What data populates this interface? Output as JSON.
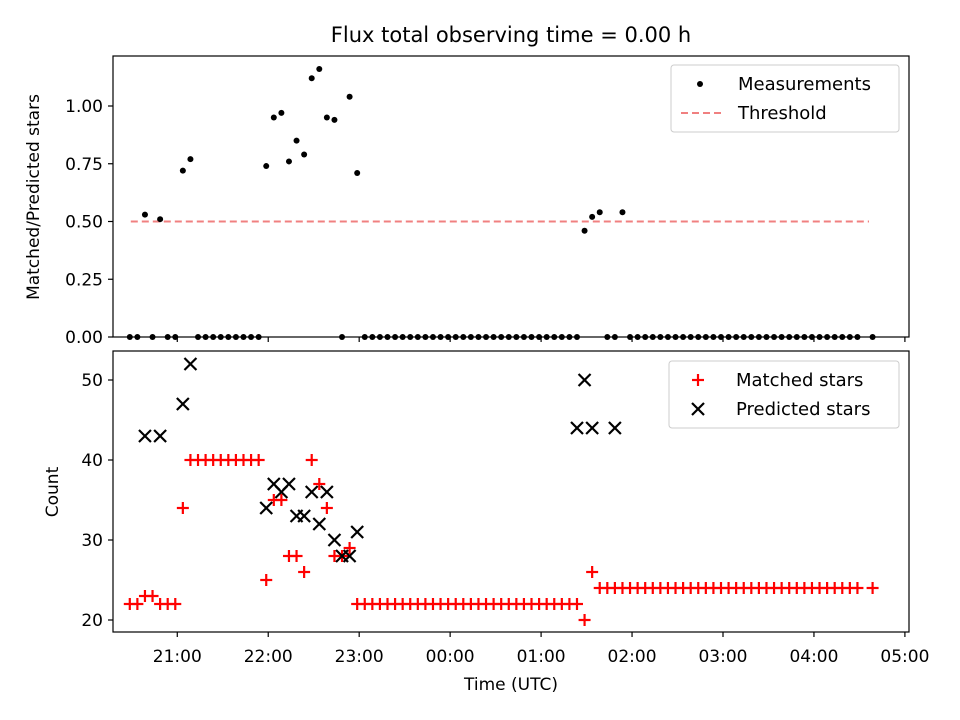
{
  "figure": {
    "title": "Flux total observing time = 0.00 h"
  },
  "chart_data": [
    {
      "type": "scatter",
      "panel": "top",
      "title": "Flux total observing time = 0.00 h",
      "xlabel": "",
      "ylabel": "Matched/Predicted stars",
      "ylim": [
        0.0,
        1.2
      ],
      "yticks": [
        0.0,
        0.25,
        0.5,
        0.75,
        1.0
      ],
      "yticklabels": [
        "0.00",
        "0.25",
        "0.50",
        "0.75",
        "1.00"
      ],
      "xticks_only": true,
      "legend_position": "top-right",
      "series": [
        {
          "name": "Measurements",
          "marker": "dot",
          "color": "#000000",
          "x": [
            "20:30",
            "20:35",
            "20:40",
            "20:45",
            "20:50",
            "20:55",
            "21:00",
            "21:05",
            "21:10",
            "21:15",
            "21:20",
            "21:25",
            "21:30",
            "21:35",
            "21:40",
            "21:45",
            "21:50",
            "21:55",
            "22:00",
            "22:05",
            "22:10",
            "22:15",
            "22:20",
            "22:25",
            "22:30",
            "22:35",
            "22:40",
            "22:45",
            "22:50",
            "22:55",
            "23:00",
            "23:05",
            "23:10",
            "23:15",
            "23:20",
            "23:25",
            "23:30",
            "23:35",
            "23:40",
            "23:45",
            "23:50",
            "23:55",
            "00:00",
            "00:05",
            "00:10",
            "00:15",
            "00:20",
            "00:25",
            "00:30",
            "00:35",
            "00:40",
            "00:45",
            "00:50",
            "00:55",
            "01:00",
            "01:05",
            "01:10",
            "01:15",
            "01:20",
            "01:25",
            "01:30",
            "01:35",
            "01:40",
            "01:45",
            "01:50",
            "01:55",
            "02:00",
            "02:05",
            "02:10",
            "02:15",
            "02:20",
            "02:25",
            "02:30",
            "02:35",
            "02:40",
            "02:45",
            "02:50",
            "02:55",
            "03:00",
            "03:05",
            "03:10",
            "03:15",
            "03:20",
            "03:25",
            "03:30",
            "03:35",
            "03:40",
            "03:45",
            "03:50",
            "03:55",
            "04:00",
            "04:05",
            "04:10",
            "04:15",
            "04:20",
            "04:25",
            "04:30",
            "04:35",
            "04:40"
          ],
          "y": [
            0,
            0,
            0.53,
            0,
            0.51,
            0,
            0,
            0.72,
            0.77,
            0,
            0,
            0,
            0,
            0,
            0,
            0,
            0,
            0,
            0.74,
            0.95,
            0.97,
            0.76,
            0.85,
            0.79,
            1.12,
            1.16,
            0.95,
            0.94,
            0,
            1.04,
            0.71,
            0,
            0,
            0,
            0,
            0,
            0,
            0,
            0,
            0,
            0,
            0,
            0,
            0,
            0,
            0,
            0,
            0,
            0,
            0,
            0,
            0,
            0,
            0,
            0,
            0,
            0,
            0,
            0,
            0,
            0.46,
            0.52,
            0.54,
            0,
            0,
            0.54,
            0,
            0,
            0,
            0,
            0,
            0,
            0,
            0,
            0,
            0,
            0,
            0,
            0,
            0,
            0,
            0,
            0,
            0,
            0,
            0,
            0,
            0,
            0,
            0,
            0,
            0,
            0,
            0,
            0,
            0,
            0,
            null,
            0
          ]
        },
        {
          "name": "Threshold",
          "style": "dashed",
          "color": "#f08080",
          "x": [
            "20:30",
            "04:35"
          ],
          "y": [
            0.5,
            0.5
          ]
        }
      ]
    },
    {
      "type": "scatter",
      "panel": "bottom",
      "xlabel": "Time (UTC)",
      "ylabel": "Count",
      "ylim": [
        18,
        54
      ],
      "yticks": [
        20,
        30,
        40,
        50
      ],
      "yticklabels": [
        "20",
        "30",
        "40",
        "50"
      ],
      "xticks": [
        "21:00",
        "22:00",
        "23:00",
        "00:00",
        "01:00",
        "02:00",
        "03:00",
        "04:00",
        "05:00"
      ],
      "xticklabels": [
        "21:00",
        "22:00",
        "23:00",
        "00:00",
        "01:00",
        "02:00",
        "03:00",
        "04:00",
        "05:00"
      ],
      "legend_position": "top-right",
      "series": [
        {
          "name": "Matched stars",
          "marker": "plus",
          "color": "#ff0000",
          "x": [
            "20:30",
            "20:35",
            "20:40",
            "20:45",
            "20:50",
            "20:55",
            "21:00",
            "21:05",
            "21:10",
            "21:15",
            "21:20",
            "21:25",
            "21:30",
            "21:35",
            "21:40",
            "21:45",
            "21:50",
            "21:55",
            "22:00",
            "22:05",
            "22:10",
            "22:15",
            "22:20",
            "22:25",
            "22:30",
            "22:35",
            "22:40",
            "22:45",
            "22:50",
            "22:55",
            "23:00",
            "23:05",
            "23:10",
            "23:15",
            "23:20",
            "23:25",
            "23:30",
            "23:35",
            "23:40",
            "23:45",
            "23:50",
            "23:55",
            "00:00",
            "00:05",
            "00:10",
            "00:15",
            "00:20",
            "00:25",
            "00:30",
            "00:35",
            "00:40",
            "00:45",
            "00:50",
            "00:55",
            "01:00",
            "01:05",
            "01:10",
            "01:15",
            "01:20",
            "01:25",
            "01:30",
            "01:35",
            "01:40",
            "01:45",
            "01:50",
            "01:55",
            "02:00",
            "02:05",
            "02:10",
            "02:15",
            "02:20",
            "02:25",
            "02:30",
            "02:35",
            "02:40",
            "02:45",
            "02:50",
            "02:55",
            "03:00",
            "03:05",
            "03:10",
            "03:15",
            "03:20",
            "03:25",
            "03:30",
            "03:35",
            "03:40",
            "03:45",
            "03:50",
            "03:55",
            "04:00",
            "04:05",
            "04:10",
            "04:15",
            "04:20",
            "04:25",
            "04:30",
            "04:35",
            "04:40"
          ],
          "y": [
            22,
            22,
            23,
            23,
            22,
            22,
            22,
            34,
            40,
            40,
            40,
            40,
            40,
            40,
            40,
            40,
            40,
            40,
            25,
            35,
            35,
            28,
            28,
            26,
            40,
            37,
            34,
            28,
            28,
            29,
            22,
            22,
            22,
            22,
            22,
            22,
            22,
            22,
            22,
            22,
            22,
            22,
            22,
            22,
            22,
            22,
            22,
            22,
            22,
            22,
            22,
            22,
            22,
            22,
            22,
            22,
            22,
            22,
            22,
            22,
            20,
            26,
            24,
            24,
            24,
            24,
            24,
            24,
            24,
            24,
            24,
            24,
            24,
            24,
            24,
            24,
            24,
            24,
            24,
            24,
            24,
            24,
            24,
            24,
            24,
            24,
            24,
            24,
            24,
            24,
            24,
            24,
            24,
            24,
            24,
            24,
            24,
            null,
            24
          ]
        },
        {
          "name": "Predicted stars",
          "marker": "x",
          "color": "#000000",
          "x": [
            "20:40",
            "20:50",
            "21:05",
            "21:10",
            "22:00",
            "22:05",
            "22:10",
            "22:15",
            "22:20",
            "22:25",
            "22:30",
            "22:35",
            "22:40",
            "22:45",
            "22:50",
            "22:55",
            "23:00",
            "01:25",
            "01:30",
            "01:35",
            "01:50"
          ],
          "y": [
            43,
            43,
            47,
            52,
            34,
            37,
            36,
            37,
            33,
            33,
            36,
            32,
            36,
            30,
            28,
            28,
            31,
            44,
            50,
            44,
            44
          ]
        }
      ]
    }
  ]
}
